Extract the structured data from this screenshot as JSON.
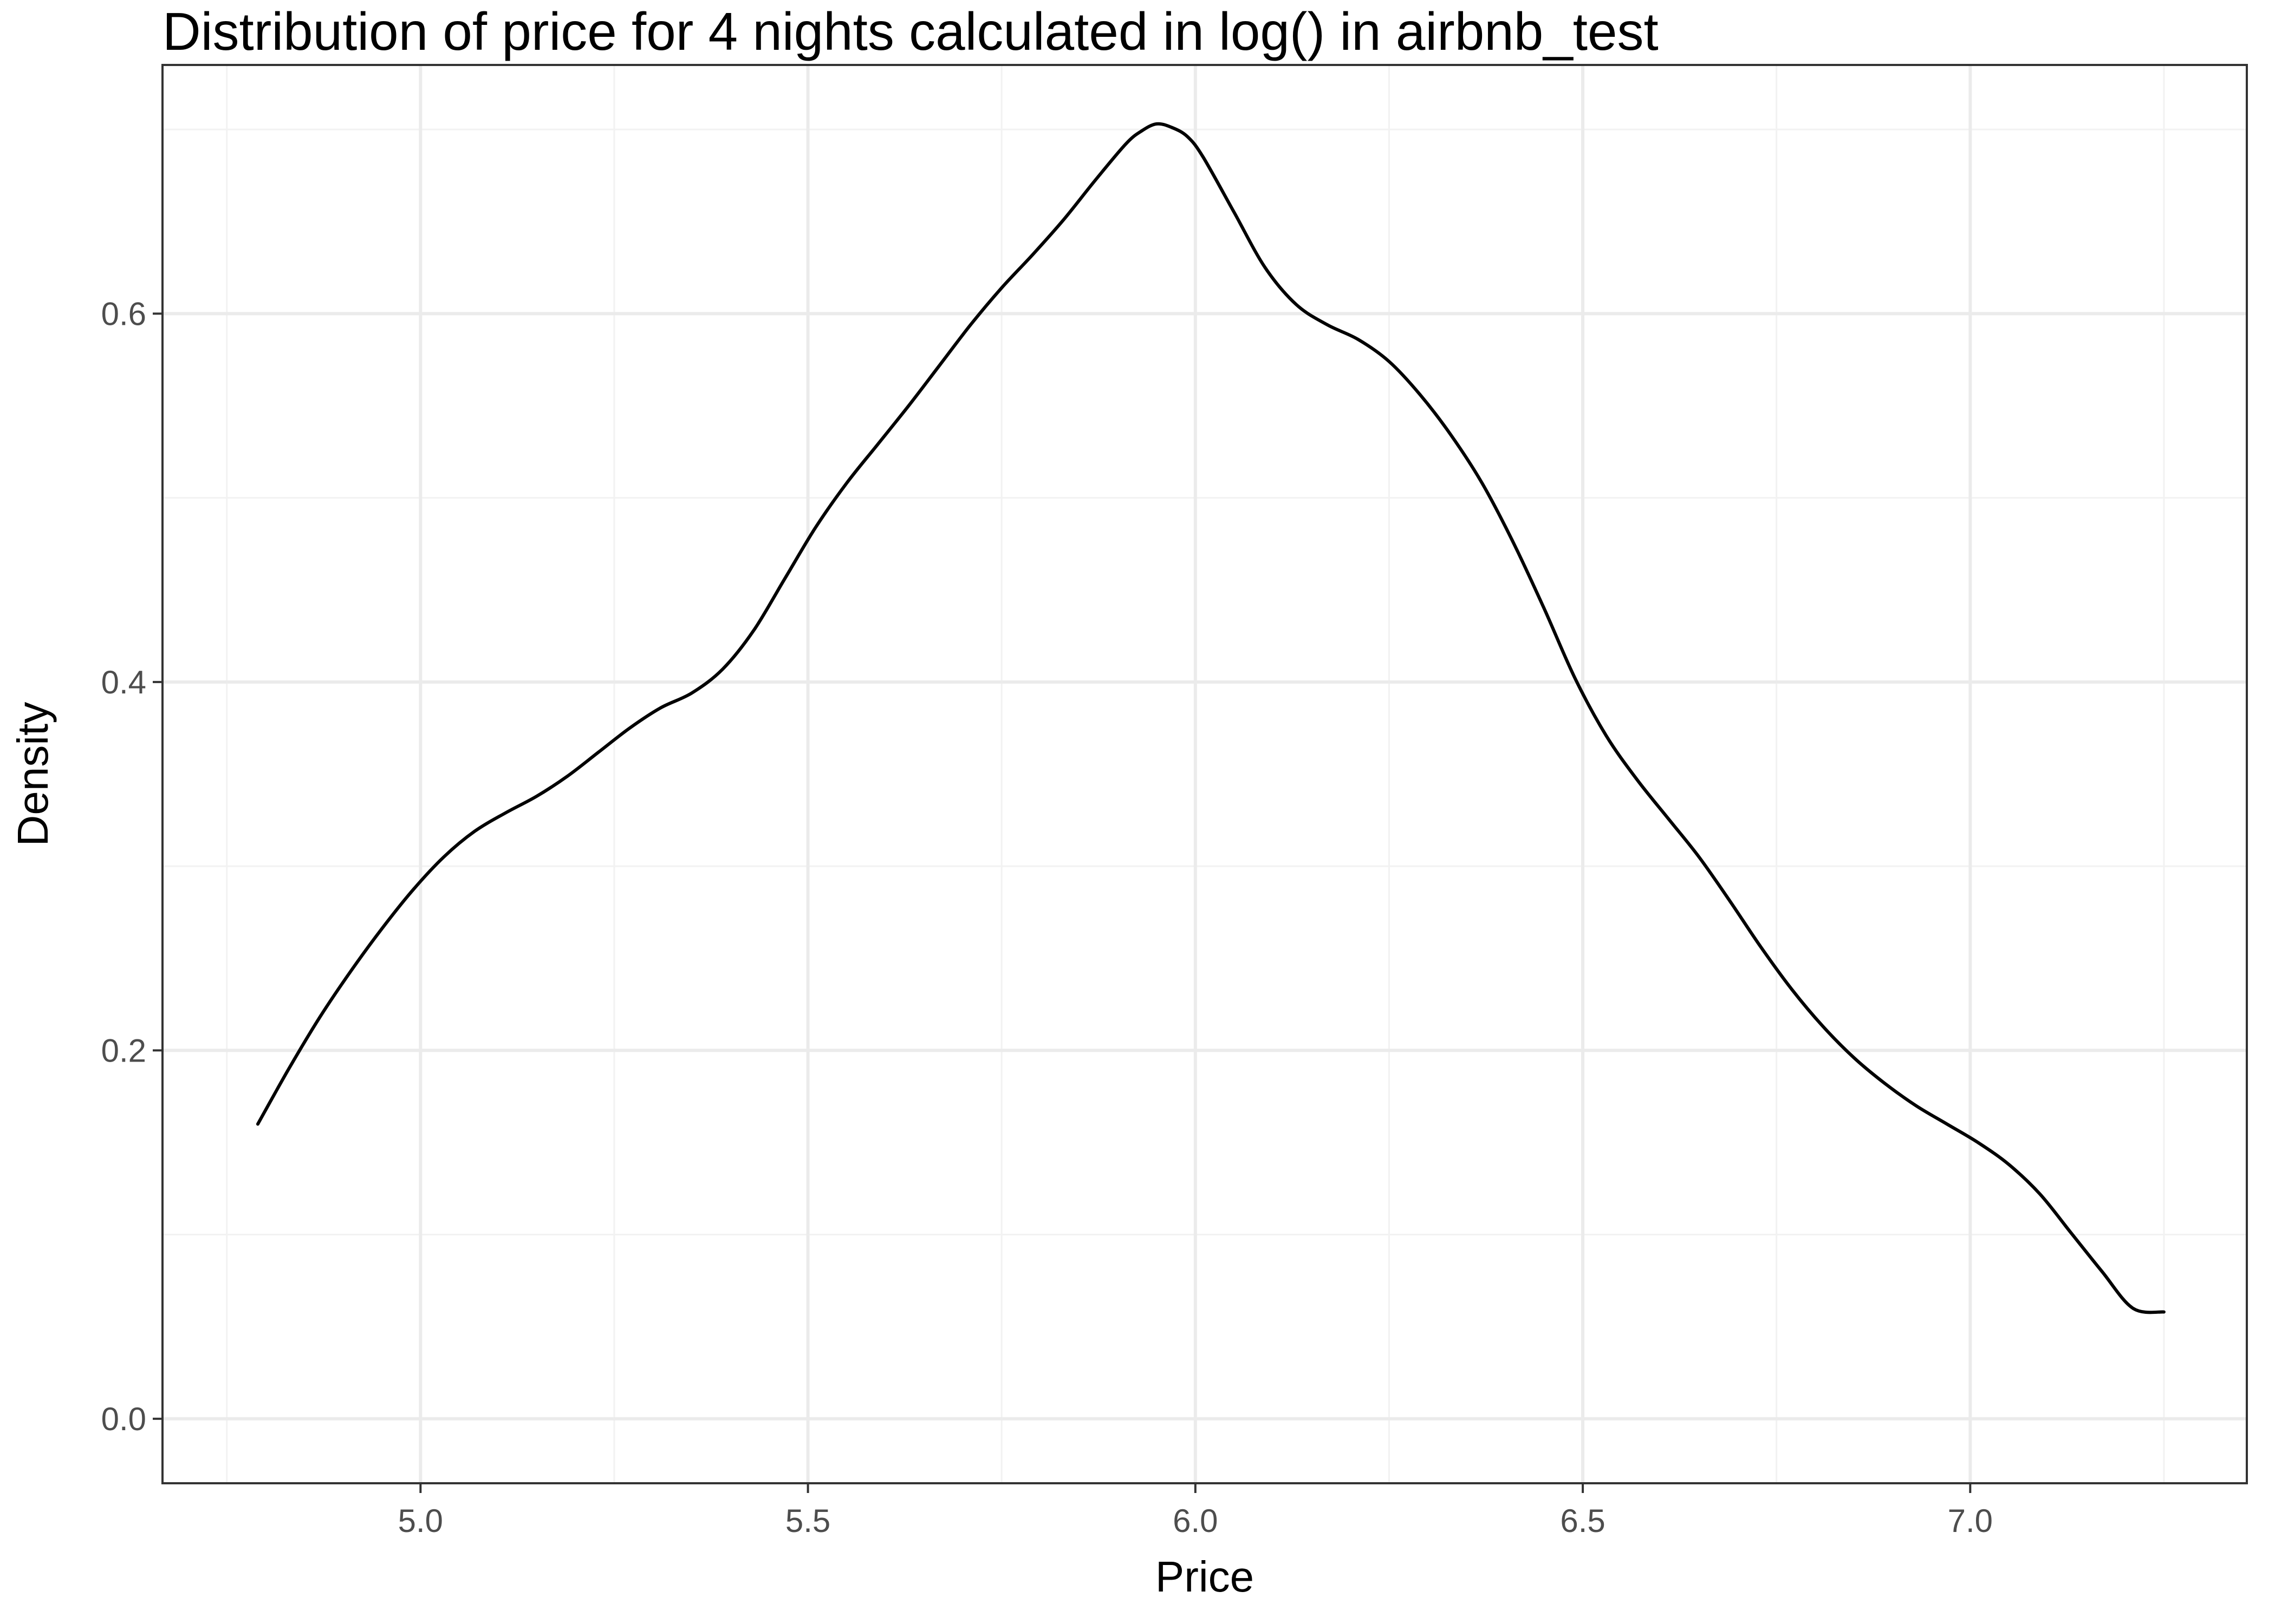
{
  "chart_data": {
    "type": "line",
    "title": "Distribution of price for 4 nights calculated in log() in airbnb_test",
    "xlabel": "Price",
    "ylabel": "Density",
    "xlim": [
      4.667,
      7.357
    ],
    "ylim": [
      -0.035,
      0.735
    ],
    "x_ticks": [
      "5.0",
      "5.5",
      "6.0",
      "6.5",
      "7.0"
    ],
    "y_ticks": [
      "0.0",
      "0.2",
      "0.4",
      "0.6"
    ],
    "grid": true,
    "legend": "none",
    "series": [
      {
        "x": [
          4.79,
          4.83,
          4.87,
          4.91,
          4.95,
          4.99,
          5.03,
          5.07,
          5.11,
          5.15,
          5.19,
          5.23,
          5.27,
          5.31,
          5.35,
          5.39,
          5.43,
          5.47,
          5.51,
          5.55,
          5.59,
          5.63,
          5.67,
          5.71,
          5.75,
          5.79,
          5.83,
          5.87,
          5.91,
          5.93,
          5.95,
          5.97,
          5.99,
          6.01,
          6.05,
          6.09,
          6.13,
          6.17,
          6.21,
          6.25,
          6.29,
          6.33,
          6.37,
          6.41,
          6.45,
          6.49,
          6.53,
          6.57,
          6.61,
          6.65,
          6.69,
          6.73,
          6.77,
          6.81,
          6.85,
          6.89,
          6.93,
          6.97,
          7.01,
          7.05,
          7.09,
          7.13,
          7.17,
          7.21,
          7.25
        ],
        "y": [
          0.16,
          0.19,
          0.218,
          0.243,
          0.266,
          0.287,
          0.305,
          0.319,
          0.329,
          0.338,
          0.349,
          0.362,
          0.375,
          0.386,
          0.394,
          0.407,
          0.428,
          0.456,
          0.484,
          0.508,
          0.529,
          0.55,
          0.572,
          0.594,
          0.614,
          0.632,
          0.651,
          0.672,
          0.692,
          0.699,
          0.703,
          0.701,
          0.696,
          0.685,
          0.655,
          0.625,
          0.605,
          0.594,
          0.586,
          0.574,
          0.556,
          0.534,
          0.508,
          0.476,
          0.44,
          0.402,
          0.371,
          0.347,
          0.326,
          0.305,
          0.281,
          0.256,
          0.233,
          0.213,
          0.196,
          0.182,
          0.17,
          0.16,
          0.15,
          0.138,
          0.122,
          0.101,
          0.08,
          0.06,
          0.058
        ]
      }
    ]
  }
}
